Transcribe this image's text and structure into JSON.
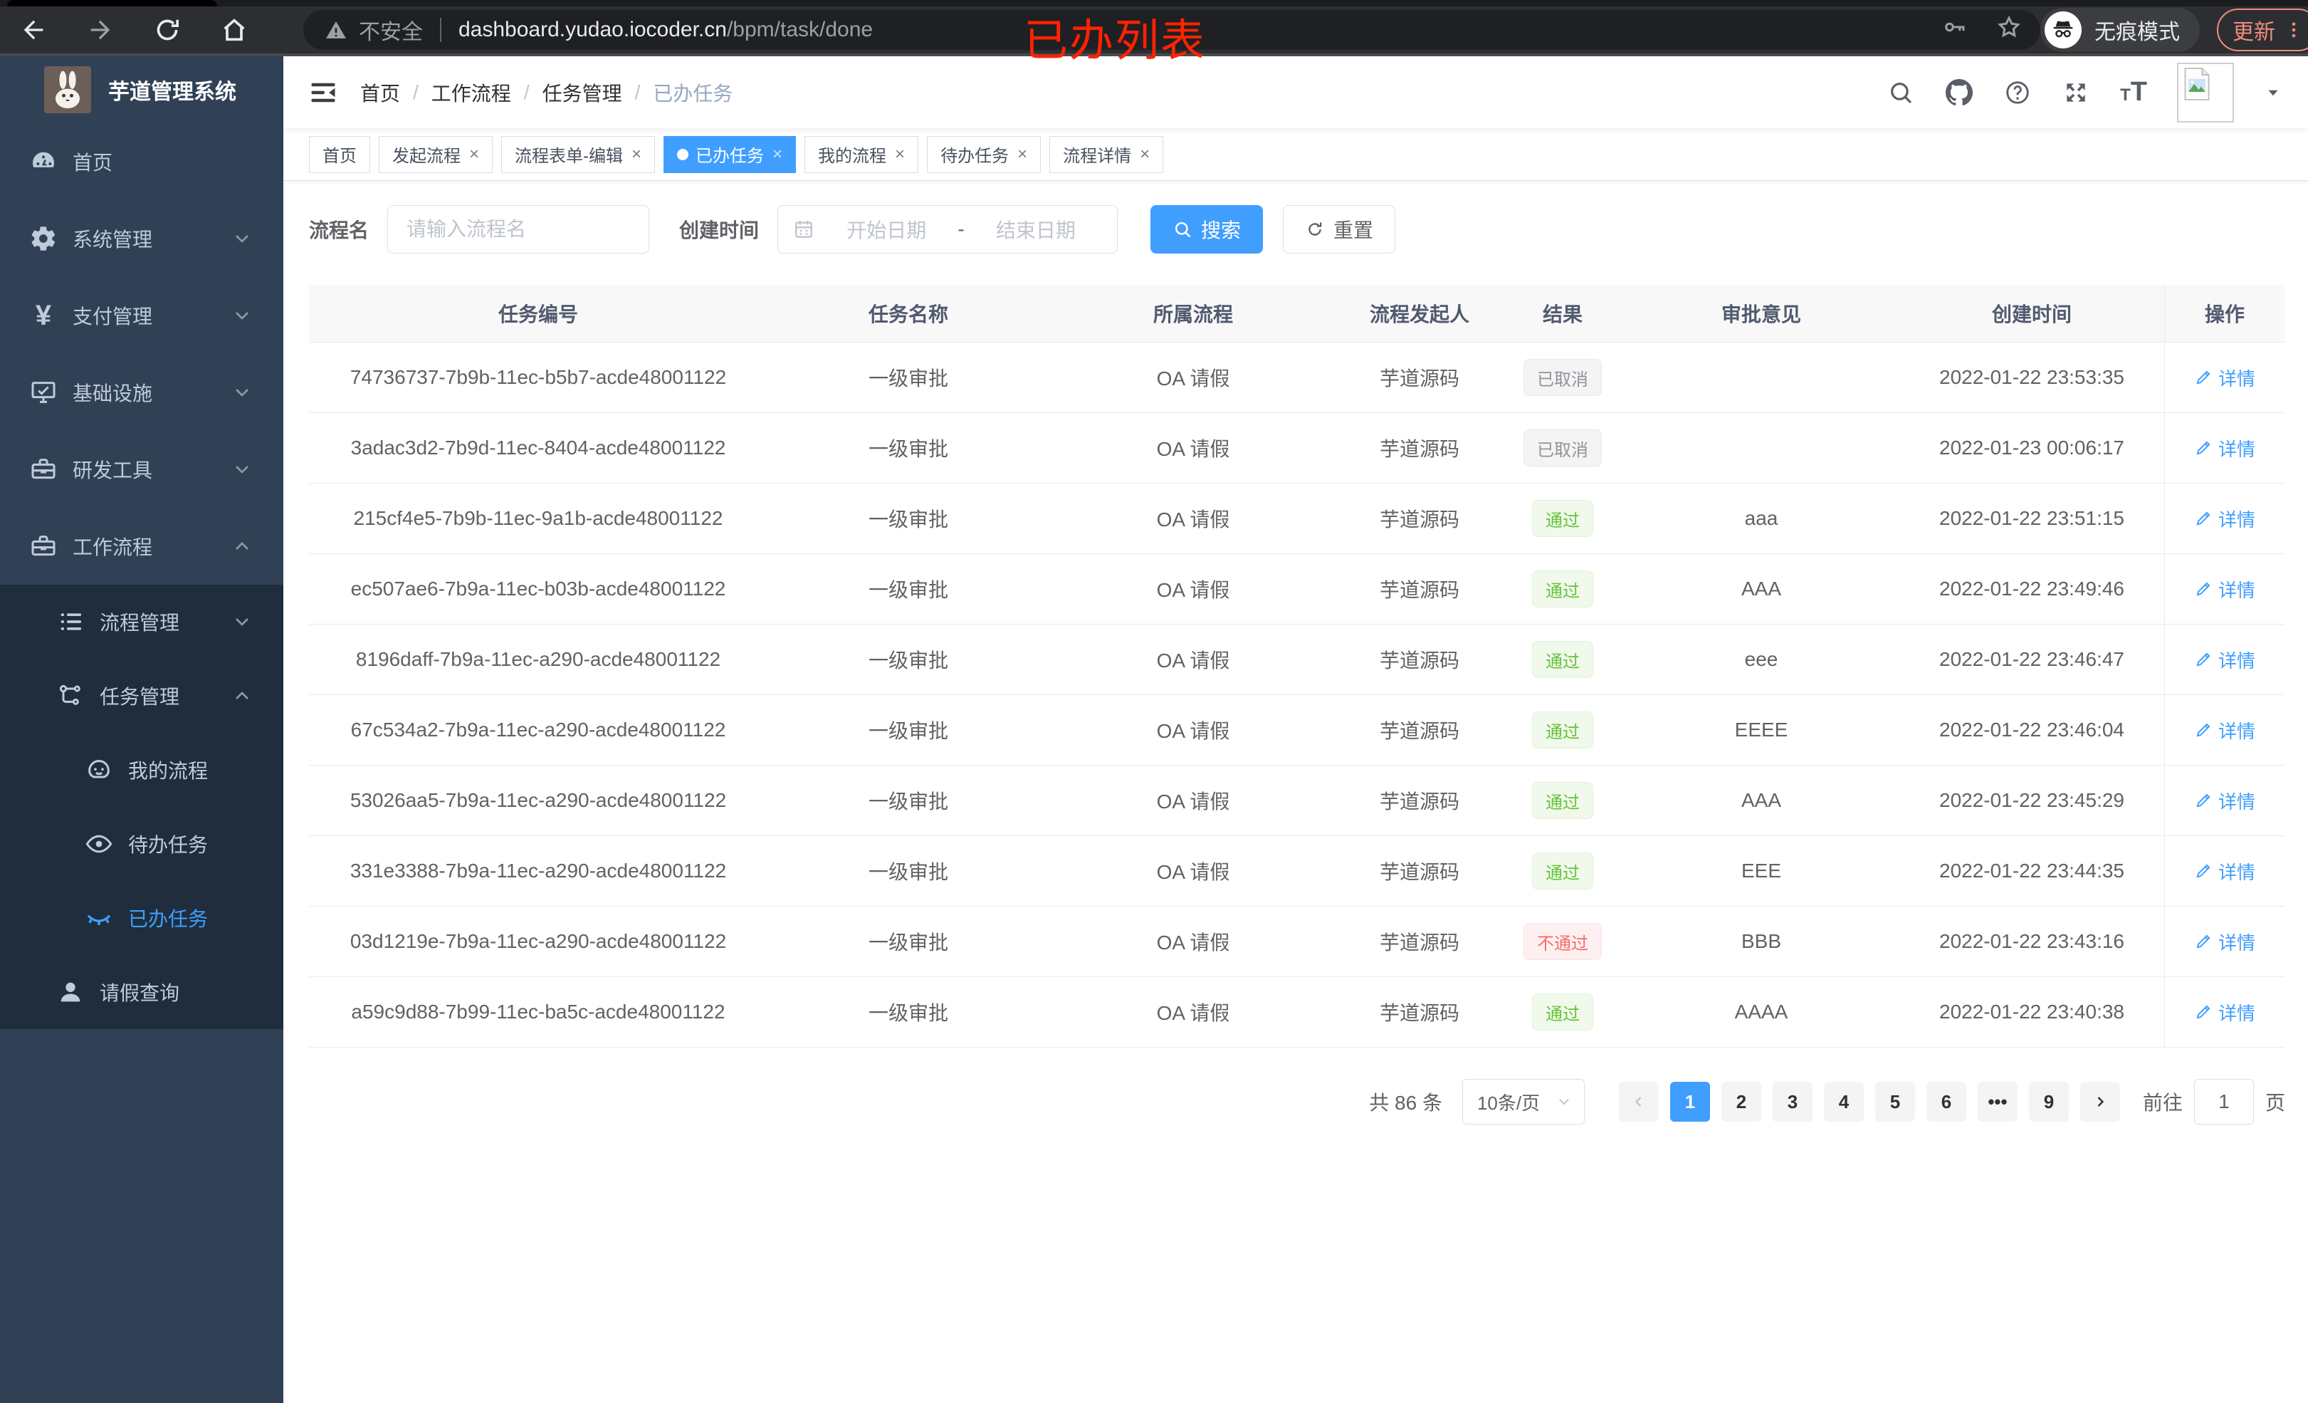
{
  "browser": {
    "security_label": "不安全",
    "url_host": "dashboard.yudao.iocoder.cn",
    "url_path": "/bpm/task/done",
    "incognito_label": "无痕模式",
    "update_label": "更新"
  },
  "annotation": {
    "text": "已办列表",
    "color": "#ff2200"
  },
  "sidebar": {
    "app_title": "芋道管理系统",
    "items": [
      {
        "key": "home",
        "label": "首页",
        "icon": "dashboard-icon",
        "level": 1
      },
      {
        "key": "system",
        "label": "系统管理",
        "icon": "gear-icon",
        "level": 1,
        "chevron": "down"
      },
      {
        "key": "payment",
        "label": "支付管理",
        "icon": "yen-icon",
        "level": 1,
        "chevron": "down"
      },
      {
        "key": "infra",
        "label": "基础设施",
        "icon": "monitor-icon",
        "level": 1,
        "chevron": "down"
      },
      {
        "key": "devtools",
        "label": "研发工具",
        "icon": "toolbox-icon",
        "level": 1,
        "chevron": "down"
      },
      {
        "key": "workflow",
        "label": "工作流程",
        "icon": "toolbox-icon",
        "level": 1,
        "chevron": "up"
      },
      {
        "key": "process-mgmt",
        "label": "流程管理",
        "icon": "list-icon",
        "level": 2,
        "chevron": "down",
        "dark": true
      },
      {
        "key": "task-mgmt",
        "label": "任务管理",
        "icon": "flow-icon",
        "level": 2,
        "chevron": "up",
        "dark": true
      },
      {
        "key": "my-process",
        "label": "我的流程",
        "icon": "face-icon",
        "level": 3,
        "dark": true
      },
      {
        "key": "todo-tasks",
        "label": "待办任务",
        "icon": "eye-open-icon",
        "level": 3,
        "dark": true
      },
      {
        "key": "done-tasks",
        "label": "已办任务",
        "icon": "eye-closed-icon",
        "level": 3,
        "dark": true,
        "active": true
      },
      {
        "key": "leave-query",
        "label": "请假查询",
        "icon": "user-icon",
        "level": 2,
        "dark": true
      }
    ]
  },
  "navbar": {
    "breadcrumb": [
      "首页",
      "工作流程",
      "任务管理",
      "已办任务"
    ],
    "breadcrumb_separator": "/",
    "right_icons": [
      "search-icon",
      "github-icon",
      "help-icon",
      "fullscreen-icon",
      "font-size-icon",
      "avatar",
      "caret-down-icon"
    ]
  },
  "tabs": [
    {
      "label": "首页",
      "closable": false,
      "active": false
    },
    {
      "label": "发起流程",
      "closable": true,
      "active": false
    },
    {
      "label": "流程表单-编辑",
      "closable": true,
      "active": false
    },
    {
      "label": "已办任务",
      "closable": true,
      "active": true
    },
    {
      "label": "我的流程",
      "closable": true,
      "active": false
    },
    {
      "label": "待办任务",
      "closable": true,
      "active": false
    },
    {
      "label": "流程详情",
      "closable": true,
      "active": false
    }
  ],
  "filters": {
    "name_label": "流程名",
    "name_placeholder": "请输入流程名",
    "name_value": "",
    "time_label": "创建时间",
    "start_placeholder": "开始日期",
    "separator": "-",
    "end_placeholder": "结束日期",
    "search_label": "搜索",
    "reset_label": "重置"
  },
  "table": {
    "columns": [
      "任务编号",
      "任务名称",
      "所属流程",
      "流程发起人",
      "结果",
      "审批意见",
      "创建时间",
      "操作"
    ],
    "action_label": "详情",
    "rows": [
      {
        "id": "74736737-7b9b-11ec-b5b7-acde48001122",
        "name": "一级审批",
        "process": "OA 请假",
        "starter": "芋道源码",
        "result": "已取消",
        "result_type": "info",
        "comment": "",
        "created": "2022-01-22 23:53:35"
      },
      {
        "id": "3adac3d2-7b9d-11ec-8404-acde48001122",
        "name": "一级审批",
        "process": "OA 请假",
        "starter": "芋道源码",
        "result": "已取消",
        "result_type": "info",
        "comment": "",
        "created": "2022-01-23 00:06:17"
      },
      {
        "id": "215cf4e5-7b9b-11ec-9a1b-acde48001122",
        "name": "一级审批",
        "process": "OA 请假",
        "starter": "芋道源码",
        "result": "通过",
        "result_type": "success",
        "comment": "aaa",
        "created": "2022-01-22 23:51:15"
      },
      {
        "id": "ec507ae6-7b9a-11ec-b03b-acde48001122",
        "name": "一级审批",
        "process": "OA 请假",
        "starter": "芋道源码",
        "result": "通过",
        "result_type": "success",
        "comment": "AAA",
        "created": "2022-01-22 23:49:46"
      },
      {
        "id": "8196daff-7b9a-11ec-a290-acde48001122",
        "name": "一级审批",
        "process": "OA 请假",
        "starter": "芋道源码",
        "result": "通过",
        "result_type": "success",
        "comment": "eee",
        "created": "2022-01-22 23:46:47"
      },
      {
        "id": "67c534a2-7b9a-11ec-a290-acde48001122",
        "name": "一级审批",
        "process": "OA 请假",
        "starter": "芋道源码",
        "result": "通过",
        "result_type": "success",
        "comment": "EEEE",
        "created": "2022-01-22 23:46:04"
      },
      {
        "id": "53026aa5-7b9a-11ec-a290-acde48001122",
        "name": "一级审批",
        "process": "OA 请假",
        "starter": "芋道源码",
        "result": "通过",
        "result_type": "success",
        "comment": "AAA",
        "created": "2022-01-22 23:45:29"
      },
      {
        "id": "331e3388-7b9a-11ec-a290-acde48001122",
        "name": "一级审批",
        "process": "OA 请假",
        "starter": "芋道源码",
        "result": "通过",
        "result_type": "success",
        "comment": "EEE",
        "created": "2022-01-22 23:44:35"
      },
      {
        "id": "03d1219e-7b9a-11ec-a290-acde48001122",
        "name": "一级审批",
        "process": "OA 请假",
        "starter": "芋道源码",
        "result": "不通过",
        "result_type": "danger",
        "comment": "BBB",
        "created": "2022-01-22 23:43:16"
      },
      {
        "id": "a59c9d88-7b99-11ec-ba5c-acde48001122",
        "name": "一级审批",
        "process": "OA 请假",
        "starter": "芋道源码",
        "result": "通过",
        "result_type": "success",
        "comment": "AAAA",
        "created": "2022-01-22 23:40:38"
      }
    ]
  },
  "pagination": {
    "total_label": "共 86 条",
    "page_size_label": "10条/页",
    "pages": [
      "1",
      "2",
      "3",
      "4",
      "5",
      "6",
      "•••",
      "9"
    ],
    "current_page": "1",
    "goto_label": "前往",
    "goto_value": "1",
    "page_unit": "页"
  },
  "colors": {
    "accent": "#409eff",
    "sidebar_bg": "#304156",
    "submenu_bg": "#1f2d3d",
    "success_text": "#67c23a",
    "success_bg": "#f0f9eb",
    "danger_text": "#f56c6c",
    "danger_bg": "#fef0f0",
    "info_text": "#909399",
    "info_bg": "#f4f4f5",
    "annotation": "#ff2200",
    "update_pill": "#ef8d7d"
  }
}
